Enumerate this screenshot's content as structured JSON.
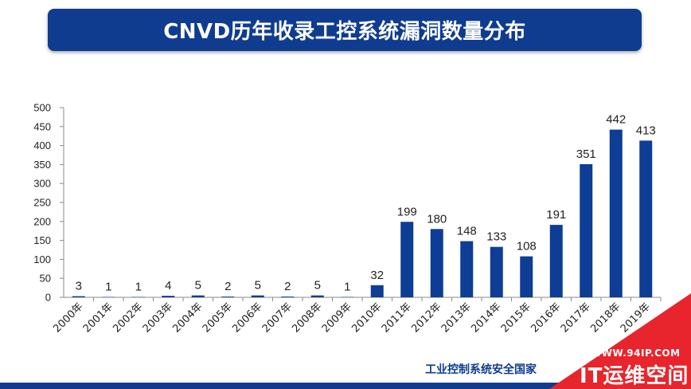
{
  "title": "CNVD历年收录工控系统漏洞数量分布",
  "source": "工业控制系统安全国家",
  "watermark": {
    "url": "WWW.94IP.COM",
    "name": "IT运维空间"
  },
  "colors": {
    "banner": "#0f3c8f",
    "bar": "#0d3d94",
    "ribbon": "#e8242c",
    "bottom_bar": "#0f3c8f"
  },
  "chart_data": {
    "type": "bar",
    "categories": [
      "2000年",
      "2001年",
      "2002年",
      "2003年",
      "2004年",
      "2005年",
      "2006年",
      "2007年",
      "2008年",
      "2009年",
      "2010年",
      "2011年",
      "2012年",
      "2013年",
      "2014年",
      "2015年",
      "2016年",
      "2017年",
      "2018年",
      "2019年"
    ],
    "values": [
      3,
      1,
      1,
      4,
      5,
      2,
      5,
      2,
      5,
      1,
      32,
      199,
      180,
      148,
      133,
      108,
      191,
      351,
      442,
      413
    ],
    "ylim": [
      0,
      500
    ],
    "yticks": [
      0,
      50,
      100,
      150,
      200,
      250,
      300,
      350,
      400,
      450,
      500
    ],
    "grid": false,
    "legend": "none",
    "xlabel": "",
    "ylabel": ""
  }
}
